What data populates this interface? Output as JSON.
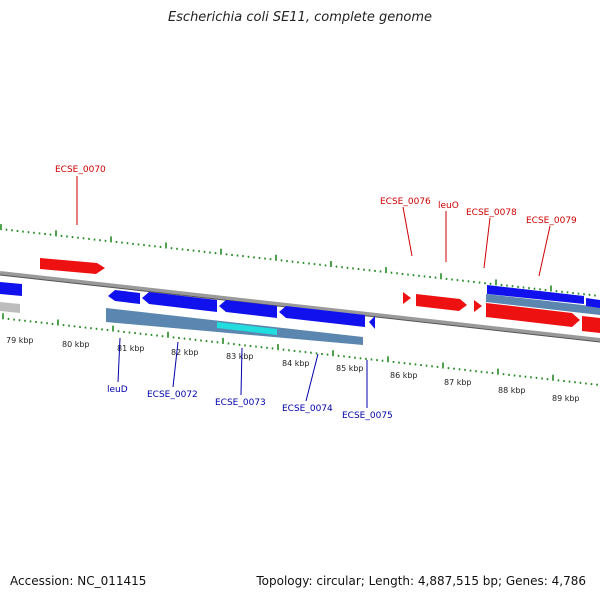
{
  "title": "Escherichia coli SE11, complete genome",
  "footer": {
    "accession": "Accession: NC_011415",
    "summary": "Topology: circular; Length: 4,887,515 bp; Genes: 4,786"
  },
  "colors": {
    "forward_gene": "#ee1111",
    "reverse_gene": "#1111ee",
    "cds_bar": "#5a86b0",
    "highlight": "#22dddd",
    "backbone": "#888888",
    "tick": "#228b22",
    "forward_label": "#cc0000",
    "reverse_label": "#0000aa"
  },
  "kbp_ticks": [
    "79 kbp",
    "80 kbp",
    "81 kbp",
    "82 kbp",
    "83 kbp",
    "84 kbp",
    "85 kbp",
    "86 kbp",
    "87 kbp",
    "88 kbp",
    "89 kbp"
  ],
  "forward_labels": [
    "ECSE_0070",
    "ECSE_0076",
    "leuO",
    "ECSE_0078",
    "ECSE_0079"
  ],
  "reverse_labels": [
    "leuD",
    "ECSE_0072",
    "ECSE_0073",
    "ECSE_0074",
    "ECSE_0075"
  ]
}
